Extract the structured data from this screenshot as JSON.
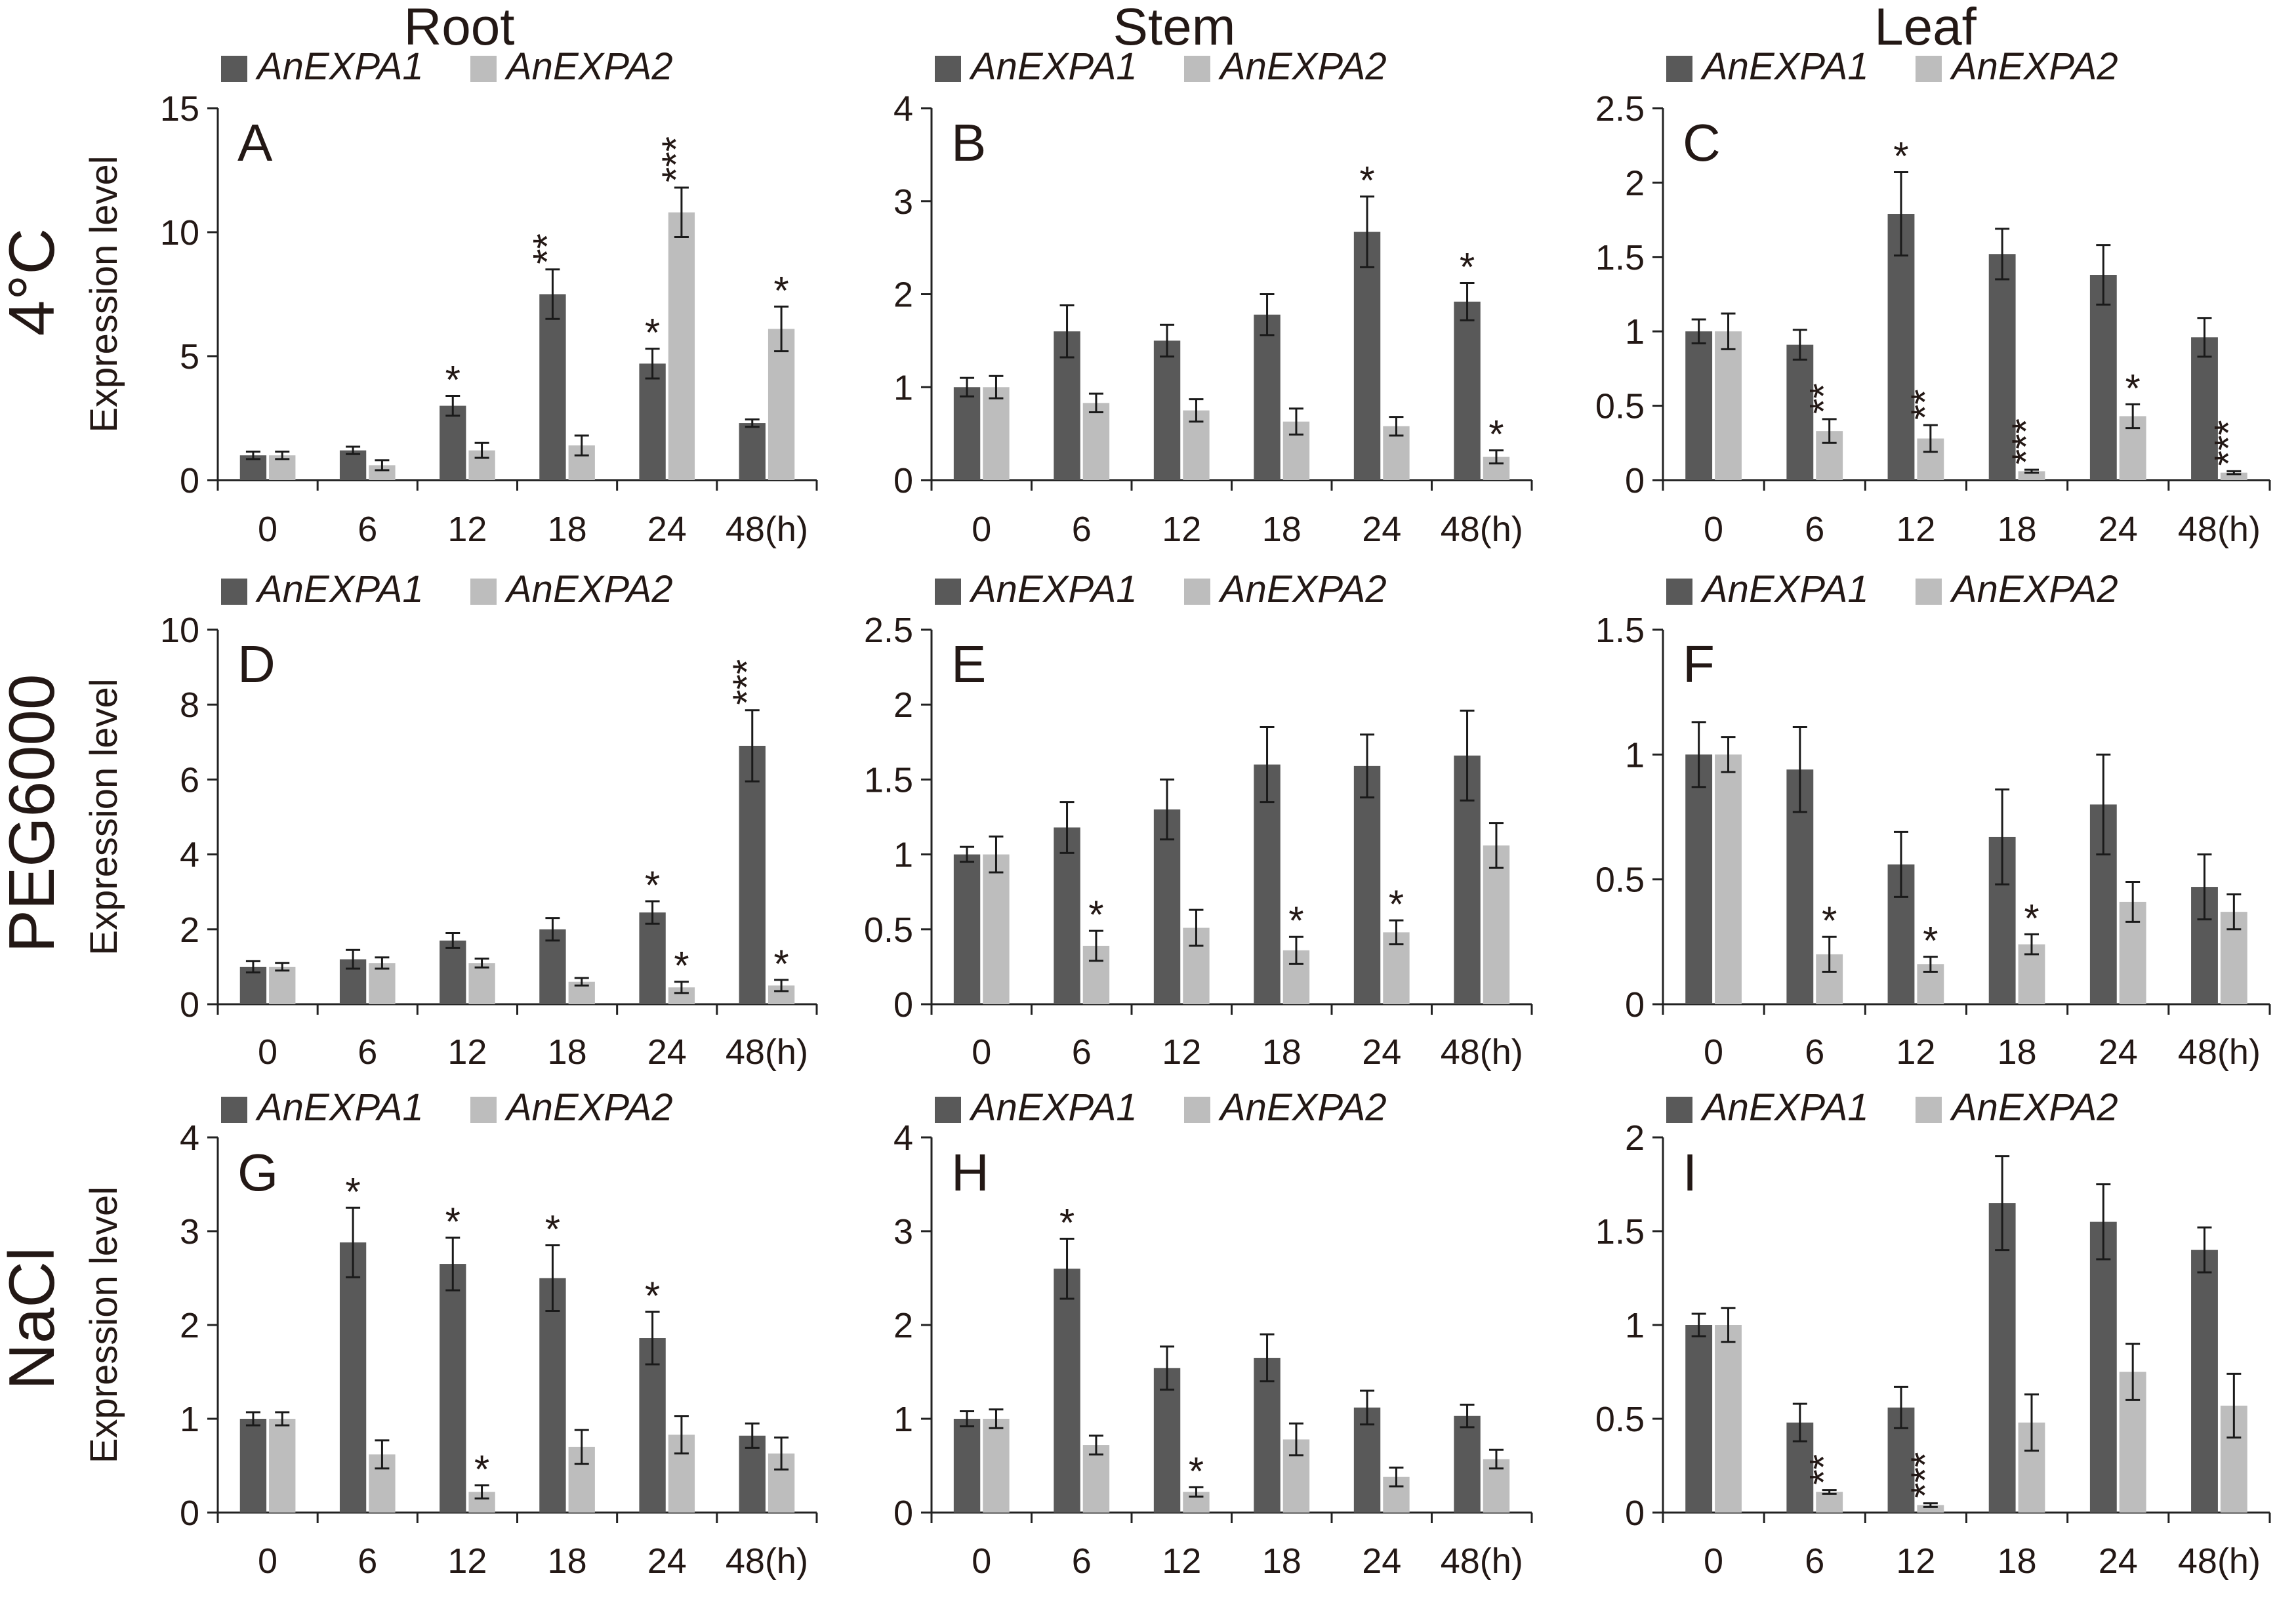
{
  "column_titles": [
    "Root",
    "Stem",
    "Leaf"
  ],
  "row_titles": [
    "4°C",
    "PEG6000",
    "NaCl"
  ],
  "ylabel": "Expression level",
  "colors": {
    "series1": "#595959",
    "series2": "#bdbdbd",
    "text": "#231815"
  },
  "chart_data": [
    {
      "type": "bar",
      "panel": "A",
      "row": 0,
      "col": 0,
      "categories": [
        "0",
        "6",
        "12",
        "18",
        "24",
        "48(h)"
      ],
      "ylim": [
        0,
        15
      ],
      "yticks": [
        0,
        5,
        10,
        15
      ],
      "series": [
        {
          "name": "AnEXPA1",
          "values": [
            1.0,
            1.2,
            3.0,
            7.5,
            4.7,
            2.3
          ],
          "errors": [
            0.15,
            0.15,
            0.4,
            1.0,
            0.6,
            0.15
          ],
          "sig": [
            "",
            "",
            "*",
            "**",
            "*",
            ""
          ]
        },
        {
          "name": "AnEXPA2",
          "values": [
            1.0,
            0.6,
            1.2,
            1.4,
            10.8,
            6.1
          ],
          "errors": [
            0.15,
            0.2,
            0.3,
            0.4,
            1.0,
            0.9
          ],
          "sig": [
            "",
            "",
            "",
            "",
            "***",
            "*"
          ]
        }
      ]
    },
    {
      "type": "bar",
      "panel": "B",
      "row": 0,
      "col": 1,
      "categories": [
        "0",
        "6",
        "12",
        "18",
        "24",
        "48(h)"
      ],
      "ylim": [
        0,
        4
      ],
      "yticks": [
        0,
        1,
        2,
        3,
        4
      ],
      "series": [
        {
          "name": "AnEXPA1",
          "values": [
            1.0,
            1.6,
            1.5,
            1.78,
            2.67,
            1.92
          ],
          "errors": [
            0.1,
            0.28,
            0.17,
            0.22,
            0.38,
            0.2
          ],
          "sig": [
            "",
            "",
            "",
            "",
            "*",
            "*"
          ]
        },
        {
          "name": "AnEXPA2",
          "values": [
            1.0,
            0.83,
            0.75,
            0.63,
            0.58,
            0.25
          ],
          "errors": [
            0.12,
            0.1,
            0.12,
            0.14,
            0.1,
            0.07
          ],
          "sig": [
            "",
            "",
            "",
            "",
            "",
            "*"
          ]
        }
      ]
    },
    {
      "type": "bar",
      "panel": "C",
      "row": 0,
      "col": 2,
      "categories": [
        "0",
        "6",
        "12",
        "18",
        "24",
        "48(h)"
      ],
      "ylim": [
        0,
        2.5
      ],
      "yticks": [
        0,
        0.5,
        1,
        1.5,
        2,
        2.5
      ],
      "series": [
        {
          "name": "AnEXPA1",
          "values": [
            1.0,
            0.91,
            1.79,
            1.52,
            1.38,
            0.96
          ],
          "errors": [
            0.08,
            0.1,
            0.28,
            0.17,
            0.2,
            0.13
          ],
          "sig": [
            "",
            "",
            "*",
            "",
            "",
            ""
          ]
        },
        {
          "name": "AnEXPA2",
          "values": [
            1.0,
            0.33,
            0.28,
            0.06,
            0.43,
            0.05
          ],
          "errors": [
            0.12,
            0.08,
            0.09,
            0.01,
            0.08,
            0.01
          ],
          "sig": [
            "",
            "**",
            "**",
            "***",
            "*",
            "***"
          ]
        }
      ]
    },
    {
      "type": "bar",
      "panel": "D",
      "row": 1,
      "col": 0,
      "categories": [
        "0",
        "6",
        "12",
        "18",
        "24",
        "48(h)"
      ],
      "ylim": [
        0,
        10
      ],
      "yticks": [
        0,
        2,
        4,
        6,
        8,
        10
      ],
      "series": [
        {
          "name": "AnEXPA1",
          "values": [
            1.0,
            1.2,
            1.7,
            2.0,
            2.45,
            6.9
          ],
          "errors": [
            0.15,
            0.25,
            0.2,
            0.3,
            0.3,
            0.95
          ],
          "sig": [
            "",
            "",
            "",
            "",
            "*",
            "***"
          ]
        },
        {
          "name": "AnEXPA2",
          "values": [
            1.0,
            1.1,
            1.1,
            0.6,
            0.45,
            0.5
          ],
          "errors": [
            0.1,
            0.15,
            0.12,
            0.1,
            0.15,
            0.15
          ],
          "sig": [
            "",
            "",
            "",
            "",
            "*",
            "*"
          ]
        }
      ]
    },
    {
      "type": "bar",
      "panel": "E",
      "row": 1,
      "col": 1,
      "categories": [
        "0",
        "6",
        "12",
        "18",
        "24",
        "48(h)"
      ],
      "ylim": [
        0,
        2.5
      ],
      "yticks": [
        0,
        0.5,
        1,
        1.5,
        2,
        2.5
      ],
      "series": [
        {
          "name": "AnEXPA1",
          "values": [
            1.0,
            1.18,
            1.3,
            1.6,
            1.59,
            1.66
          ],
          "errors": [
            0.05,
            0.17,
            0.2,
            0.25,
            0.21,
            0.3
          ],
          "sig": [
            "",
            "",
            "",
            "",
            "",
            ""
          ]
        },
        {
          "name": "AnEXPA2",
          "values": [
            1.0,
            0.39,
            0.51,
            0.36,
            0.48,
            1.06
          ],
          "errors": [
            0.12,
            0.1,
            0.12,
            0.09,
            0.08,
            0.15
          ],
          "sig": [
            "",
            "*",
            "",
            "*",
            "*",
            ""
          ]
        }
      ]
    },
    {
      "type": "bar",
      "panel": "F",
      "row": 1,
      "col": 2,
      "categories": [
        "0",
        "6",
        "12",
        "18",
        "24",
        "48(h)"
      ],
      "ylim": [
        0,
        1.5
      ],
      "yticks": [
        0,
        0.5,
        1,
        1.5
      ],
      "series": [
        {
          "name": "AnEXPA1",
          "values": [
            1.0,
            0.94,
            0.56,
            0.67,
            0.8,
            0.47
          ],
          "errors": [
            0.13,
            0.17,
            0.13,
            0.19,
            0.2,
            0.13
          ],
          "sig": [
            "",
            "",
            "",
            "",
            "",
            ""
          ]
        },
        {
          "name": "AnEXPA2",
          "values": [
            1.0,
            0.2,
            0.16,
            0.24,
            0.41,
            0.37
          ],
          "errors": [
            0.07,
            0.07,
            0.03,
            0.04,
            0.08,
            0.07
          ],
          "sig": [
            "",
            "*",
            "*",
            "*",
            "",
            ""
          ]
        }
      ]
    },
    {
      "type": "bar",
      "panel": "G",
      "row": 2,
      "col": 0,
      "categories": [
        "0",
        "6",
        "12",
        "18",
        "24",
        "48(h)"
      ],
      "ylim": [
        0,
        4
      ],
      "yticks": [
        0,
        1,
        2,
        3,
        4
      ],
      "series": [
        {
          "name": "AnEXPA1",
          "values": [
            1.0,
            2.88,
            2.65,
            2.5,
            1.86,
            0.82
          ],
          "errors": [
            0.07,
            0.37,
            0.28,
            0.35,
            0.28,
            0.13
          ],
          "sig": [
            "",
            "*",
            "*",
            "*",
            "*",
            ""
          ]
        },
        {
          "name": "AnEXPA2",
          "values": [
            1.0,
            0.62,
            0.22,
            0.7,
            0.83,
            0.63
          ],
          "errors": [
            0.07,
            0.15,
            0.07,
            0.18,
            0.2,
            0.17
          ],
          "sig": [
            "",
            "",
            "*",
            "",
            "",
            ""
          ]
        }
      ]
    },
    {
      "type": "bar",
      "panel": "H",
      "row": 2,
      "col": 1,
      "categories": [
        "0",
        "6",
        "12",
        "18",
        "24",
        "48(h)"
      ],
      "ylim": [
        0,
        4
      ],
      "yticks": [
        0,
        1,
        2,
        3,
        4
      ],
      "series": [
        {
          "name": "AnEXPA1",
          "values": [
            1.0,
            2.6,
            1.54,
            1.65,
            1.12,
            1.03
          ],
          "errors": [
            0.08,
            0.32,
            0.23,
            0.25,
            0.18,
            0.12
          ],
          "sig": [
            "",
            "*",
            "",
            "",
            "",
            ""
          ]
        },
        {
          "name": "AnEXPA2",
          "values": [
            1.0,
            0.72,
            0.22,
            0.78,
            0.38,
            0.57
          ],
          "errors": [
            0.1,
            0.1,
            0.05,
            0.17,
            0.1,
            0.1
          ],
          "sig": [
            "",
            "",
            "*",
            "",
            "",
            ""
          ]
        }
      ]
    },
    {
      "type": "bar",
      "panel": "I",
      "row": 2,
      "col": 2,
      "categories": [
        "0",
        "6",
        "12",
        "18",
        "24",
        "48(h)"
      ],
      "ylim": [
        0,
        2
      ],
      "yticks": [
        0,
        0.5,
        1,
        1.5,
        2
      ],
      "series": [
        {
          "name": "AnEXPA1",
          "values": [
            1.0,
            0.48,
            0.56,
            1.65,
            1.55,
            1.4
          ],
          "errors": [
            0.06,
            0.1,
            0.11,
            0.25,
            0.2,
            0.12
          ],
          "sig": [
            "",
            "",
            "",
            "",
            "",
            ""
          ]
        },
        {
          "name": "AnEXPA2",
          "values": [
            1.0,
            0.11,
            0.04,
            0.48,
            0.75,
            0.57
          ],
          "errors": [
            0.09,
            0.01,
            0.01,
            0.15,
            0.15,
            0.17
          ],
          "sig": [
            "",
            "**",
            "***",
            "",
            "",
            ""
          ]
        }
      ]
    }
  ]
}
